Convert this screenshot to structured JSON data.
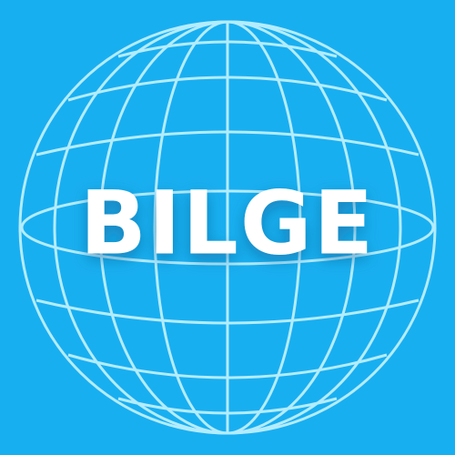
{
  "logo": {
    "text": "BILGE"
  }
}
